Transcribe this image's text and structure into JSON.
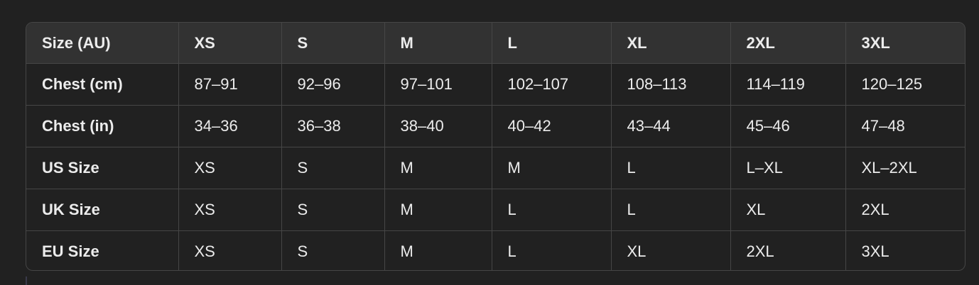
{
  "table": {
    "headers": [
      "Size (AU)",
      "XS",
      "S",
      "M",
      "L",
      "XL",
      "2XL",
      "3XL"
    ],
    "rows": [
      [
        "Chest (cm)",
        "87–91",
        "92–96",
        "97–101",
        "102–107",
        "108–113",
        "114–119",
        "120–125"
      ],
      [
        "Chest (in)",
        "34–36",
        "36–38",
        "38–40",
        "40–42",
        "43–44",
        "45–46",
        "47–48"
      ],
      [
        "US Size",
        "XS",
        "S",
        "M",
        "M",
        "L",
        "L–XL",
        "XL–2XL"
      ],
      [
        "UK Size",
        "XS",
        "S",
        "M",
        "L",
        "L",
        "XL",
        "2XL"
      ],
      [
        "EU Size",
        "XS",
        "S",
        "M",
        "L",
        "XL",
        "2XL",
        "3XL"
      ]
    ]
  },
  "colors": {
    "background": "#212121",
    "header": "#323232",
    "border": "#464646",
    "text": "#ececec"
  }
}
